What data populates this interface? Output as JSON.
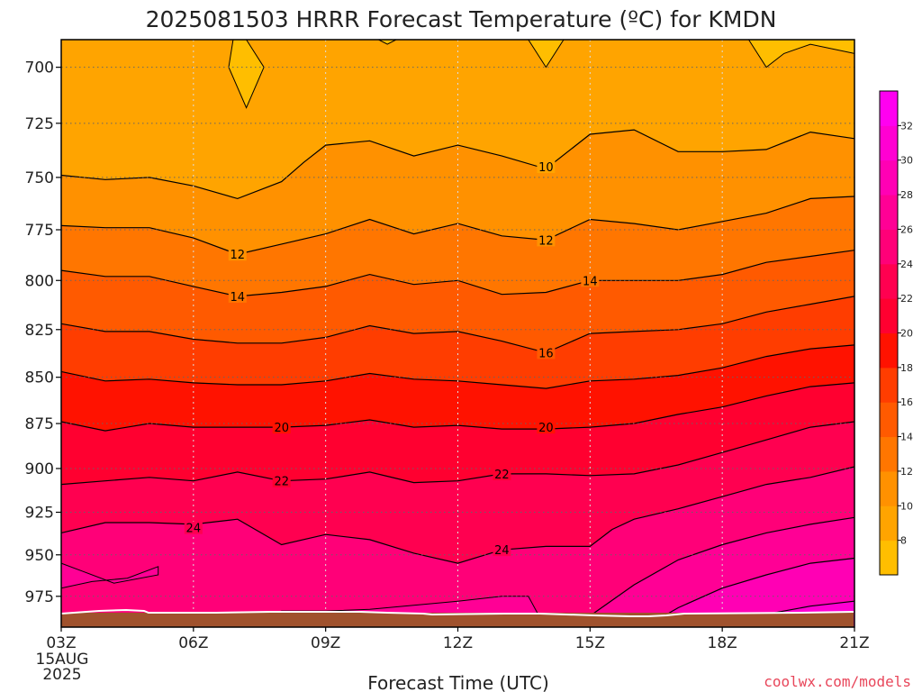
{
  "chart_data": {
    "type": "heatmap",
    "title": "2025081503 HRRR Forecast Temperature (ºC) for KMDN",
    "xlabel": "Forecast Time (UTC)",
    "ylabel": "",
    "x_ticks": [
      "03Z",
      "06Z",
      "09Z",
      "12Z",
      "15Z",
      "18Z",
      "21Z"
    ],
    "x_first_date": [
      "15AUG",
      "2025"
    ],
    "xlim_hours": [
      3,
      21
    ],
    "y_ticks": [
      700,
      725,
      750,
      775,
      800,
      825,
      850,
      875,
      900,
      925,
      950,
      975
    ],
    "ylim_hpa": [
      688,
      994
    ],
    "colorbar": {
      "levels": [
        6,
        8,
        10,
        12,
        14,
        16,
        18,
        20,
        22,
        24,
        26,
        28,
        30,
        32,
        34
      ],
      "labels": [
        8,
        10,
        12,
        14,
        16,
        18,
        20,
        22,
        24,
        26,
        28,
        30,
        32
      ],
      "colors": [
        "#ffbe00",
        "#ffa400",
        "#ff9100",
        "#ff7600",
        "#ff5a00",
        "#ff3d00",
        "#ff1200",
        "#ff0030",
        "#ff0050",
        "#ff0078",
        "#ff0095",
        "#ff00b4",
        "#ff00d2",
        "#ff00f0"
      ]
    },
    "isotherms": [
      {
        "value": 10,
        "label_at": [
          [
            14,
            745
          ]
        ],
        "points": [
          [
            3,
            749
          ],
          [
            4,
            751
          ],
          [
            5,
            750
          ],
          [
            6,
            754
          ],
          [
            7,
            760
          ],
          [
            8,
            752
          ],
          [
            8.5,
            743
          ],
          [
            9,
            735
          ],
          [
            10,
            733
          ],
          [
            11,
            740
          ],
          [
            12,
            735
          ],
          [
            13,
            740
          ],
          [
            14,
            746
          ],
          [
            15,
            730
          ],
          [
            16,
            728
          ],
          [
            17,
            738
          ],
          [
            18,
            738
          ],
          [
            19,
            737
          ],
          [
            20,
            729
          ],
          [
            21,
            732
          ]
        ]
      },
      {
        "value": 12,
        "label_at": [
          [
            7,
            787
          ],
          [
            14,
            780
          ]
        ],
        "points": [
          [
            3,
            773
          ],
          [
            4,
            774
          ],
          [
            5,
            774
          ],
          [
            6,
            779
          ],
          [
            7,
            787
          ],
          [
            8,
            782
          ],
          [
            9,
            777
          ],
          [
            10,
            770
          ],
          [
            11,
            777
          ],
          [
            12,
            772
          ],
          [
            13,
            778
          ],
          [
            14,
            780
          ],
          [
            15,
            770
          ],
          [
            16,
            772
          ],
          [
            17,
            775
          ],
          [
            18,
            771
          ],
          [
            19,
            767
          ],
          [
            20,
            760
          ],
          [
            21,
            759
          ]
        ]
      },
      {
        "value": 14,
        "label_at": [
          [
            7,
            808
          ],
          [
            15,
            800
          ]
        ],
        "points": [
          [
            3,
            795
          ],
          [
            4,
            798
          ],
          [
            5,
            798
          ],
          [
            6,
            803
          ],
          [
            7,
            808
          ],
          [
            8,
            806
          ],
          [
            9,
            803
          ],
          [
            10,
            797
          ],
          [
            11,
            802
          ],
          [
            12,
            800
          ],
          [
            13,
            807
          ],
          [
            14,
            806
          ],
          [
            15,
            800
          ],
          [
            16,
            800
          ],
          [
            17,
            800
          ],
          [
            18,
            797
          ],
          [
            19,
            791
          ],
          [
            20,
            788
          ],
          [
            21,
            785
          ]
        ]
      },
      {
        "value": 16,
        "label_at": [
          [
            14,
            837
          ]
        ],
        "points": [
          [
            3,
            822
          ],
          [
            4,
            826
          ],
          [
            5,
            826
          ],
          [
            6,
            830
          ],
          [
            7,
            832
          ],
          [
            8,
            832
          ],
          [
            9,
            829
          ],
          [
            10,
            823
          ],
          [
            11,
            827
          ],
          [
            12,
            826
          ],
          [
            13,
            831
          ],
          [
            14,
            837
          ],
          [
            15,
            827
          ],
          [
            16,
            826
          ],
          [
            17,
            825
          ],
          [
            18,
            822
          ],
          [
            19,
            816
          ],
          [
            20,
            812
          ],
          [
            21,
            808
          ]
        ]
      },
      {
        "value": 18,
        "label_at": [],
        "points": [
          [
            3,
            847
          ],
          [
            4,
            852
          ],
          [
            5,
            851
          ],
          [
            6,
            853
          ],
          [
            7,
            854
          ],
          [
            8,
            854
          ],
          [
            9,
            852
          ],
          [
            10,
            848
          ],
          [
            11,
            851
          ],
          [
            12,
            852
          ],
          [
            13,
            854
          ],
          [
            14,
            856
          ],
          [
            15,
            852
          ],
          [
            16,
            851
          ],
          [
            17,
            849
          ],
          [
            18,
            845
          ],
          [
            19,
            839
          ],
          [
            20,
            835
          ],
          [
            21,
            833
          ]
        ]
      },
      {
        "value": 20,
        "label_at": [
          [
            8,
            877
          ],
          [
            14,
            877
          ]
        ],
        "points": [
          [
            3,
            874
          ],
          [
            4,
            879
          ],
          [
            5,
            875
          ],
          [
            6,
            877
          ],
          [
            7,
            877
          ],
          [
            8,
            877
          ],
          [
            9,
            876
          ],
          [
            10,
            873
          ],
          [
            11,
            877
          ],
          [
            12,
            876
          ],
          [
            13,
            878
          ],
          [
            14,
            878
          ],
          [
            15,
            877
          ],
          [
            16,
            875
          ],
          [
            17,
            870
          ],
          [
            18,
            866
          ],
          [
            19,
            860
          ],
          [
            20,
            855
          ],
          [
            21,
            853
          ]
        ]
      },
      {
        "value": 22,
        "label_at": [
          [
            8,
            907
          ],
          [
            13,
            903
          ]
        ],
        "points": [
          [
            3,
            909
          ],
          [
            4,
            907
          ],
          [
            5,
            905
          ],
          [
            6,
            907
          ],
          [
            7,
            902
          ],
          [
            8,
            907
          ],
          [
            9,
            906
          ],
          [
            10,
            902
          ],
          [
            11,
            908
          ],
          [
            12,
            907
          ],
          [
            13,
            903
          ],
          [
            14,
            903
          ],
          [
            15,
            904
          ],
          [
            16,
            903
          ],
          [
            17,
            898
          ],
          [
            18,
            891
          ],
          [
            19,
            884
          ],
          [
            20,
            877
          ],
          [
            21,
            874
          ]
        ]
      },
      {
        "value": 24,
        "label_at": [
          [
            6,
            934
          ],
          [
            13,
            947
          ]
        ],
        "points": [
          [
            3,
            937
          ],
          [
            4,
            931
          ],
          [
            5,
            931
          ],
          [
            6,
            932
          ],
          [
            7,
            929
          ],
          [
            8,
            944
          ],
          [
            9,
            938
          ],
          [
            10,
            941
          ],
          [
            11,
            949
          ],
          [
            12,
            955
          ],
          [
            13,
            947
          ],
          [
            14,
            945
          ],
          [
            15,
            945
          ],
          [
            15.5,
            935
          ],
          [
            16,
            929
          ],
          [
            17,
            923
          ],
          [
            18,
            916
          ],
          [
            19,
            909
          ],
          [
            20,
            905
          ],
          [
            21,
            899
          ]
        ]
      },
      {
        "value": 26,
        "label_at": [],
        "points": [
          [
            15,
            987
          ],
          [
            16,
            968
          ],
          [
            17,
            953
          ],
          [
            18,
            944
          ],
          [
            19,
            937
          ],
          [
            20,
            932
          ],
          [
            21,
            928
          ]
        ]
      },
      {
        "value": 28,
        "label_at": [],
        "points": [
          [
            16.3,
            993
          ],
          [
            17,
            982
          ],
          [
            18,
            970
          ],
          [
            19,
            962
          ],
          [
            20,
            955
          ],
          [
            21,
            952
          ]
        ]
      },
      {
        "value": 30,
        "label_at": [],
        "points": [
          [
            18,
            993
          ],
          [
            19,
            986
          ],
          [
            20,
            981
          ],
          [
            21,
            978
          ]
        ]
      }
    ],
    "annotations": [
      "coolwx.com/models"
    ]
  }
}
